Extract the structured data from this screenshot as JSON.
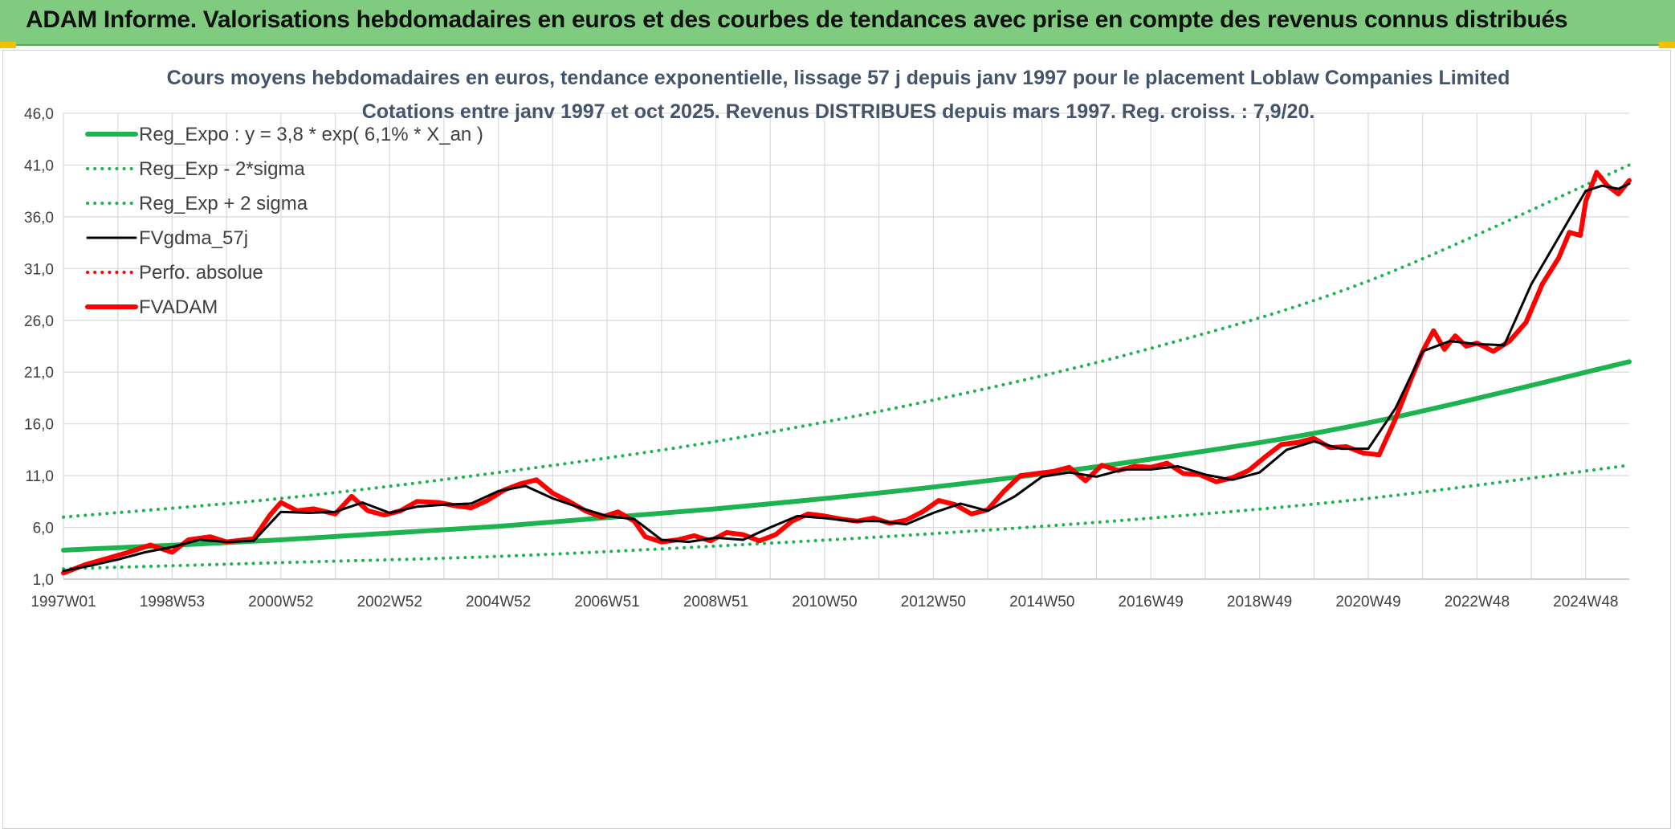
{
  "header": {
    "title": "ADAM Informe. Valorisations hebdomadaires en euros et des courbes de tendances avec prise en compte des revenus connus distribués"
  },
  "colors": {
    "header_bg": "#7fcb7f",
    "trend": "#1db34f",
    "price": "#ff0000",
    "moving_avg": "#000000",
    "perf": "#ff0000",
    "title_text": "#44546a",
    "grid": "#d9d9d9"
  },
  "chart_data": {
    "type": "line",
    "title": "Cours moyens hebdomadaires en euros, tendance exponentielle, lissage 57 j depuis janv 1997 pour le placement Loblaw Companies Limited",
    "subtitle": "Cotations entre janv 1997 et oct 2025. Revenus DISTRIBUES depuis mars 1997. Reg. croiss. : 7,9/20.",
    "ylim": [
      1.0,
      46.0
    ],
    "yticks": [
      "1,0",
      "6,0",
      "11,0",
      "16,0",
      "21,0",
      "26,0",
      "31,0",
      "36,0",
      "41,0",
      "46,0"
    ],
    "xlim": [
      1997.0,
      2025.8
    ],
    "xticks": [
      {
        "label": "1997W01",
        "x": 1997.0
      },
      {
        "label": "1998W53",
        "x": 1999.0
      },
      {
        "label": "2000W52",
        "x": 2001.0
      },
      {
        "label": "2002W52",
        "x": 2003.0
      },
      {
        "label": "2004W52",
        "x": 2005.0
      },
      {
        "label": "2006W51",
        "x": 2007.0
      },
      {
        "label": "2008W51",
        "x": 2009.0
      },
      {
        "label": "2010W50",
        "x": 2011.0
      },
      {
        "label": "2012W50",
        "x": 2013.0
      },
      {
        "label": "2014W50",
        "x": 2015.0
      },
      {
        "label": "2016W49",
        "x": 2017.0
      },
      {
        "label": "2018W49",
        "x": 2019.0
      },
      {
        "label": "2020W49",
        "x": 2021.0
      },
      {
        "label": "2022W48",
        "x": 2023.0
      },
      {
        "label": "2024W48",
        "x": 2025.0
      }
    ],
    "grid": true,
    "legend_position": "top-left",
    "series": [
      {
        "name": "Reg_Expo : y = 3,8 * exp( 6,1% *  X_an )",
        "style": "solid-thick",
        "color": "#1db34f",
        "x": [
          1997.0,
          2001.0,
          2005.0,
          2009.0,
          2013.0,
          2017.0,
          2021.0,
          2025.8
        ],
        "y": [
          3.8,
          4.8,
          6.1,
          7.8,
          9.9,
          12.6,
          16.1,
          22.0
        ]
      },
      {
        "name": "Reg_Exp - 2*sigma",
        "style": "dotted",
        "color": "#1db34f",
        "x": [
          1997.0,
          2001.0,
          2005.0,
          2009.0,
          2013.0,
          2017.0,
          2021.0,
          2025.8
        ],
        "y": [
          2.0,
          2.6,
          3.2,
          4.2,
          5.4,
          6.9,
          8.8,
          12.0
        ]
      },
      {
        "name": "Reg_Exp + 2 sigma",
        "style": "dotted",
        "color": "#1db34f",
        "x": [
          1997.0,
          2001.0,
          2005.0,
          2009.0,
          2013.0,
          2017.0,
          2021.0,
          2025.8
        ],
        "y": [
          7.0,
          8.8,
          11.3,
          14.3,
          18.3,
          23.3,
          29.8,
          41.0
        ]
      },
      {
        "name": "FVgdma_57j",
        "style": "solid",
        "color": "#000000",
        "x": [
          1997.0,
          1997.5,
          1998.0,
          1998.5,
          1999.0,
          1999.5,
          2000.0,
          2000.5,
          2001.0,
          2001.5,
          2002.0,
          2002.5,
          2003.0,
          2003.5,
          2004.0,
          2004.5,
          2005.0,
          2005.5,
          2006.0,
          2006.5,
          2007.0,
          2007.5,
          2008.0,
          2008.5,
          2009.0,
          2009.5,
          2010.0,
          2010.5,
          2011.0,
          2011.5,
          2012.0,
          2012.5,
          2013.0,
          2013.5,
          2014.0,
          2014.5,
          2015.0,
          2015.5,
          2016.0,
          2016.5,
          2017.0,
          2017.5,
          2018.0,
          2018.5,
          2019.0,
          2019.5,
          2020.0,
          2020.5,
          2021.0,
          2021.5,
          2022.0,
          2022.5,
          2023.0,
          2023.5,
          2024.0,
          2024.5,
          2025.0,
          2025.3,
          2025.6,
          2025.8
        ],
        "y": [
          1.8,
          2.3,
          2.9,
          3.6,
          4.1,
          4.8,
          4.6,
          4.7,
          7.5,
          7.4,
          7.5,
          8.4,
          7.4,
          8.0,
          8.2,
          8.3,
          9.5,
          10.0,
          8.8,
          7.9,
          7.1,
          6.8,
          4.8,
          4.6,
          5.0,
          4.8,
          6.0,
          7.1,
          6.9,
          6.6,
          6.6,
          6.3,
          7.4,
          8.3,
          7.6,
          9.0,
          10.9,
          11.3,
          10.9,
          11.6,
          11.6,
          11.9,
          11.1,
          10.6,
          11.3,
          13.5,
          14.3,
          13.6,
          13.6,
          17.5,
          23.0,
          24.0,
          23.7,
          23.6,
          29.5,
          34.0,
          38.5,
          39.0,
          38.7,
          39.2
        ]
      },
      {
        "name": "Perfo. absolue",
        "style": "dotted",
        "color": "#ff0000",
        "x": [],
        "y": []
      },
      {
        "name": "FVADAM",
        "style": "solid-thick",
        "color": "#ff0000",
        "x": [
          1997.0,
          1997.4,
          1997.8,
          1998.2,
          1998.6,
          1999.0,
          1999.3,
          1999.7,
          2000.0,
          2000.5,
          2000.8,
          2001.0,
          2001.3,
          2001.6,
          2002.0,
          2002.3,
          2002.6,
          2002.9,
          2003.2,
          2003.5,
          2003.9,
          2004.2,
          2004.5,
          2004.8,
          2005.1,
          2005.4,
          2005.7,
          2006.0,
          2006.3,
          2006.6,
          2006.9,
          2007.2,
          2007.5,
          2007.7,
          2008.0,
          2008.3,
          2008.6,
          2008.9,
          2009.2,
          2009.5,
          2009.8,
          2010.1,
          2010.4,
          2010.7,
          2011.0,
          2011.3,
          2011.6,
          2011.9,
          2012.2,
          2012.5,
          2012.8,
          2013.1,
          2013.4,
          2013.7,
          2014.0,
          2014.3,
          2014.6,
          2014.9,
          2015.2,
          2015.5,
          2015.8,
          2016.1,
          2016.4,
          2016.7,
          2017.0,
          2017.3,
          2017.6,
          2017.9,
          2018.2,
          2018.5,
          2018.8,
          2019.1,
          2019.4,
          2019.7,
          2020.0,
          2020.3,
          2020.6,
          2020.9,
          2021.2,
          2021.5,
          2021.8,
          2022.0,
          2022.2,
          2022.4,
          2022.6,
          2022.8,
          2023.0,
          2023.3,
          2023.6,
          2023.9,
          2024.2,
          2024.5,
          2024.7,
          2024.9,
          2025.0,
          2025.2,
          2025.4,
          2025.6,
          2025.8
        ],
        "y": [
          1.6,
          2.4,
          3.0,
          3.6,
          4.3,
          3.6,
          4.8,
          5.1,
          4.6,
          4.9,
          7.2,
          8.4,
          7.6,
          7.8,
          7.3,
          9.0,
          7.6,
          7.2,
          7.6,
          8.5,
          8.4,
          8.1,
          7.9,
          8.6,
          9.6,
          10.2,
          10.6,
          9.3,
          8.5,
          7.6,
          7.0,
          7.5,
          6.6,
          5.1,
          4.6,
          4.8,
          5.2,
          4.7,
          5.5,
          5.3,
          4.7,
          5.3,
          6.6,
          7.3,
          7.1,
          6.8,
          6.6,
          6.9,
          6.4,
          6.7,
          7.5,
          8.6,
          8.2,
          7.3,
          7.7,
          9.5,
          11.0,
          11.2,
          11.4,
          11.8,
          10.5,
          12.0,
          11.5,
          11.9,
          11.8,
          12.2,
          11.2,
          11.1,
          10.4,
          10.8,
          11.5,
          12.8,
          14.0,
          14.2,
          14.6,
          13.7,
          13.8,
          13.2,
          13.0,
          16.5,
          20.5,
          23.0,
          25.0,
          23.2,
          24.5,
          23.5,
          23.8,
          23.0,
          24.0,
          25.8,
          29.5,
          32.0,
          34.5,
          34.2,
          37.5,
          40.3,
          39.0,
          38.2,
          39.5
        ]
      }
    ]
  }
}
